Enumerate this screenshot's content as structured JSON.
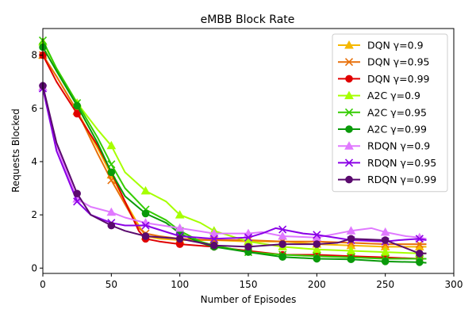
{
  "chart_data": {
    "type": "line",
    "title": "eMBB Block Rate",
    "xlabel": "Number of Episodes",
    "ylabel": "Requests Blocked",
    "xlim": [
      0,
      300
    ],
    "ylim": [
      -0.2,
      9.0
    ],
    "xticks": [
      "0",
      "50",
      "100",
      "150",
      "200",
      "250",
      "300"
    ],
    "yticks": [
      "0",
      "2",
      "4",
      "6",
      "8"
    ],
    "grid": false,
    "legend_position": "top-right",
    "series": [
      {
        "name": "DQN γ=0.9",
        "color": "#f5b800",
        "marker": "triangle",
        "x": [
          0,
          10,
          25,
          40,
          50,
          60,
          70,
          75,
          85,
          100,
          125,
          150,
          175,
          200,
          225,
          250,
          275,
          280
        ],
        "y": [
          8.0,
          7.2,
          5.9,
          4.5,
          3.5,
          2.5,
          1.6,
          1.2,
          1.1,
          1.05,
          1.05,
          1.0,
          1.0,
          0.9,
          0.85,
          0.8,
          0.8,
          0.8
        ]
      },
      {
        "name": "DQN γ=0.95",
        "color": "#e8700a",
        "marker": "x",
        "x": [
          0,
          10,
          25,
          40,
          50,
          60,
          70,
          75,
          85,
          100,
          125,
          150,
          175,
          200,
          225,
          250,
          275,
          280
        ],
        "y": [
          8.0,
          7.2,
          5.9,
          4.3,
          3.3,
          2.4,
          1.5,
          1.3,
          1.2,
          1.1,
          1.05,
          1.05,
          1.0,
          1.0,
          0.95,
          0.9,
          0.9,
          0.9
        ]
      },
      {
        "name": "DQN γ=0.99",
        "color": "#e00000",
        "marker": "circle",
        "x": [
          0,
          10,
          25,
          40,
          50,
          60,
          70,
          75,
          85,
          100,
          125,
          150,
          175,
          200,
          225,
          250,
          275,
          280
        ],
        "y": [
          8.0,
          7.0,
          5.8,
          4.6,
          3.6,
          2.5,
          1.4,
          1.1,
          1.0,
          0.9,
          0.8,
          0.65,
          0.5,
          0.5,
          0.45,
          0.4,
          0.35,
          0.35
        ]
      },
      {
        "name": "A2C γ=0.9",
        "color": "#a6ff00",
        "marker": "triangle",
        "x": [
          0,
          10,
          25,
          40,
          50,
          60,
          75,
          90,
          100,
          115,
          125,
          150,
          175,
          200,
          225,
          250,
          275,
          280
        ],
        "y": [
          8.5,
          7.5,
          6.2,
          5.2,
          4.6,
          3.6,
          2.9,
          2.5,
          2.0,
          1.7,
          1.4,
          1.0,
          0.8,
          0.7,
          0.65,
          0.6,
          0.55,
          0.55
        ]
      },
      {
        "name": "A2C γ=0.95",
        "color": "#33cc00",
        "marker": "x",
        "x": [
          0,
          10,
          25,
          40,
          50,
          60,
          75,
          90,
          100,
          115,
          125,
          150,
          175,
          200,
          225,
          250,
          275,
          280
        ],
        "y": [
          8.55,
          7.5,
          6.2,
          4.9,
          3.9,
          3.0,
          2.2,
          1.8,
          1.4,
          1.0,
          0.85,
          0.6,
          0.5,
          0.45,
          0.4,
          0.35,
          0.35,
          0.35
        ]
      },
      {
        "name": "A2C γ=0.99",
        "color": "#0a9a0a",
        "marker": "circle",
        "x": [
          0,
          10,
          25,
          40,
          50,
          60,
          75,
          90,
          100,
          115,
          125,
          150,
          175,
          200,
          225,
          250,
          275,
          280
        ],
        "y": [
          8.3,
          7.4,
          6.1,
          4.7,
          3.6,
          2.7,
          2.05,
          1.7,
          1.3,
          0.95,
          0.8,
          0.6,
          0.42,
          0.35,
          0.33,
          0.25,
          0.22,
          0.2
        ]
      },
      {
        "name": "RDQN γ=0.9",
        "color": "#e079ff",
        "marker": "triangle",
        "x": [
          0,
          10,
          25,
          35,
          50,
          60,
          75,
          100,
          125,
          150,
          160,
          175,
          200,
          225,
          240,
          250,
          265,
          275,
          280
        ],
        "y": [
          6.8,
          4.6,
          2.6,
          2.3,
          2.1,
          1.9,
          1.7,
          1.5,
          1.3,
          1.3,
          1.35,
          1.2,
          1.15,
          1.4,
          1.5,
          1.35,
          1.2,
          1.15,
          1.1
        ]
      },
      {
        "name": "RDQN γ=0.95",
        "color": "#8a00e6",
        "marker": "x",
        "x": [
          0,
          10,
          25,
          35,
          50,
          60,
          75,
          100,
          125,
          150,
          160,
          170,
          175,
          190,
          200,
          225,
          250,
          260,
          275,
          280
        ],
        "y": [
          6.75,
          4.4,
          2.5,
          2.0,
          1.7,
          1.6,
          1.6,
          1.2,
          1.1,
          1.15,
          1.3,
          1.5,
          1.45,
          1.3,
          1.25,
          1.05,
          1.0,
          1.05,
          1.1,
          1.05
        ]
      },
      {
        "name": "RDQN γ=0.99",
        "color": "#5a0a6e",
        "marker": "circle",
        "x": [
          0,
          10,
          25,
          35,
          50,
          60,
          75,
          100,
          125,
          150,
          175,
          200,
          215,
          225,
          250,
          260,
          275,
          280
        ],
        "y": [
          6.85,
          4.7,
          2.8,
          2.0,
          1.6,
          1.4,
          1.2,
          1.1,
          0.85,
          0.8,
          0.9,
          0.9,
          0.95,
          1.1,
          1.05,
          0.85,
          0.55,
          0.55
        ]
      }
    ]
  }
}
